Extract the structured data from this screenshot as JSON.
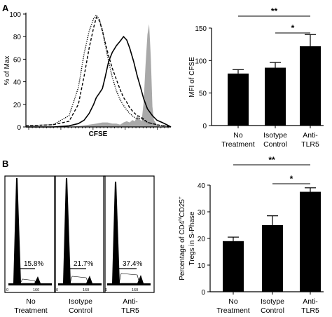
{
  "panels": {
    "a_label": "A",
    "b_label": "B"
  },
  "chart_data": [
    {
      "type": "line",
      "panel": "A",
      "title": "",
      "xlabel": "CFSE",
      "ylabel": "% of Max",
      "ylim": [
        0,
        100
      ],
      "yticks": [
        0,
        20,
        40,
        60,
        80,
        100
      ],
      "xscale": "log (no tick labels)",
      "series": [
        {
          "style": "dotted",
          "color": "#000000",
          "x": [
            1.0,
            2.0,
            3.0,
            3.8,
            4.4,
            5.0,
            5.6,
            6.0,
            6.5,
            7.0,
            7.5,
            8.2,
            9.0,
            10.0,
            11.0,
            12.0,
            13.0,
            14.0,
            15.5,
            17.0,
            18.5,
            20.0,
            22.0,
            25.0,
            28.0,
            32.0,
            36.0,
            40.0
          ],
          "y": [
            1,
            2,
            10,
            35,
            65,
            85,
            96,
            99,
            95,
            86,
            73,
            58,
            44,
            32,
            24,
            19,
            15,
            12,
            9,
            7,
            8,
            6,
            4,
            3,
            2,
            1,
            1,
            0
          ]
        },
        {
          "style": "dashed",
          "color": "#000000",
          "x": [
            1.0,
            2.0,
            3.0,
            3.8,
            4.4,
            5.0,
            5.6,
            6.0,
            6.5,
            7.0,
            7.5,
            8.2,
            9.0,
            10.0,
            11.0,
            12.0,
            13.0,
            14.0,
            15.5,
            17.0,
            18.5,
            20.0,
            22.0,
            25.0,
            28.0,
            32.0,
            36.0,
            40.0
          ],
          "y": [
            1,
            2,
            5,
            20,
            45,
            70,
            88,
            97,
            94,
            85,
            75,
            63,
            52,
            42,
            33,
            26,
            22,
            17,
            13,
            10,
            9,
            7,
            4,
            3,
            2,
            1,
            1,
            0
          ]
        },
        {
          "style": "solid",
          "color": "#000000",
          "x": [
            1.0,
            2.0,
            3.0,
            3.8,
            4.4,
            5.0,
            5.6,
            6.0,
            6.5,
            7.0,
            7.5,
            8.2,
            9.0,
            10.0,
            11.0,
            12.0,
            13.0,
            14.0,
            15.5,
            17.0,
            18.5,
            20.0,
            22.0,
            25.0,
            28.0,
            32.0,
            36.0,
            40.0
          ],
          "y": [
            0,
            0,
            1,
            3,
            6,
            12,
            20,
            26,
            30,
            34,
            44,
            58,
            66,
            72,
            76,
            80,
            77,
            70,
            58,
            45,
            35,
            25,
            16,
            10,
            6,
            4,
            2,
            0
          ]
        },
        {
          "style": "filled",
          "color": "#a9a9a9",
          "x": [
            1.0,
            2.0,
            3.0,
            4.0,
            5.0,
            6.0,
            7.0,
            8.0,
            9.0,
            10.0,
            11.0,
            12.0,
            13.0,
            14.0,
            15.0,
            16.0,
            17.0,
            18.0,
            19.0,
            20.0,
            21.0,
            22.0,
            23.0,
            24.0,
            25.0,
            26.0,
            28.0,
            30.0,
            40.0
          ],
          "y": [
            0,
            0,
            0,
            1,
            2,
            3,
            4,
            4,
            3,
            3,
            2,
            4,
            5,
            4,
            6,
            5,
            10,
            7,
            5,
            22,
            55,
            82,
            91,
            62,
            18,
            6,
            2,
            0,
            0
          ]
        }
      ]
    },
    {
      "type": "bar",
      "panel": "A",
      "title": "",
      "xlabel": "",
      "ylabel": "MFI of CFSE",
      "ylim": [
        0,
        150
      ],
      "yticks": [
        0,
        50,
        100,
        150
      ],
      "categories": [
        "No Treatment",
        "Isotype Control",
        "Anti-TLR5"
      ],
      "category_lines": [
        [
          "No",
          "Treatment"
        ],
        [
          "Isotype",
          "Control"
        ],
        [
          "Anti-",
          "TLR5"
        ]
      ],
      "values": [
        80,
        89,
        122
      ],
      "errors": [
        6,
        8,
        18
      ],
      "significance": [
        {
          "from": 0,
          "to": 2,
          "label": "**"
        },
        {
          "from": 1,
          "to": 2,
          "label": "*"
        }
      ]
    },
    {
      "type": "histogram-panels",
      "panel": "B",
      "axis_tick_labels": [
        "0",
        "160"
      ],
      "panels": [
        {
          "label_lines": [
            "No",
            "Treatment"
          ],
          "percent": "15.8%"
        },
        {
          "label_lines": [
            "Isotype",
            "Control"
          ],
          "percent": "21.7%"
        },
        {
          "label_lines": [
            "Anti-",
            "TLR5"
          ],
          "percent": "37.4%"
        }
      ]
    },
    {
      "type": "bar",
      "panel": "B",
      "title": "",
      "xlabel": "",
      "ylabel": "Percentage of CD4hiCD25+ Tregs in S-Phase",
      "ylim": [
        0,
        40
      ],
      "yticks": [
        0,
        10,
        20,
        30,
        40
      ],
      "categories": [
        "No Treatment",
        "Isotype Control",
        "Anti-TLR5"
      ],
      "category_lines": [
        [
          "No",
          "Treatment"
        ],
        [
          "Isotype",
          "Control"
        ],
        [
          "Anti-",
          "TLR5"
        ]
      ],
      "values": [
        19,
        25,
        37.5
      ],
      "errors": [
        1.5,
        3.5,
        1.5
      ],
      "significance": [
        {
          "from": 0,
          "to": 2,
          "label": "**"
        },
        {
          "from": 1,
          "to": 2,
          "label": "*"
        }
      ]
    }
  ],
  "ylabel_b_parts": {
    "line1_pre": "Percentage of CD4",
    "line1_sup1": "hi",
    "line1_mid": "CD25",
    "line1_sup2": "+",
    "line2": "Tregs in S-Phase"
  }
}
